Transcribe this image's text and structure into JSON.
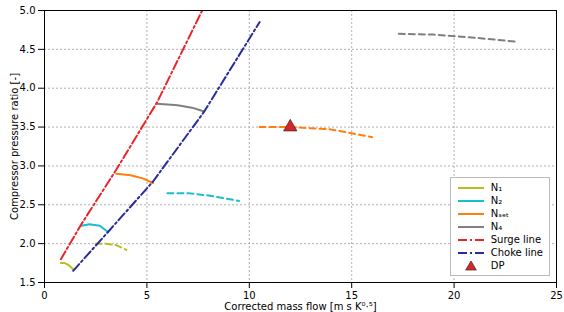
{
  "chart_data": {
    "type": "line",
    "x_label": "Corrected mass flow [m s K⁰·⁵]",
    "y_label": "Compressor pressure ratio [-]",
    "xlim": [
      0,
      25
    ],
    "xticks": [
      0,
      5,
      10,
      15,
      20,
      25
    ],
    "ylim": [
      1.5,
      5.0
    ],
    "yticks": [
      1.5,
      {
        "value": 2,
        "label": "2.0"
      },
      2.5,
      {
        "value": 3,
        "label": "3.0"
      },
      3.5,
      {
        "value": 4,
        "label": "4.0"
      },
      4.5,
      {
        "value": 5,
        "label": "5.0"
      }
    ],
    "grid": true,
    "legend": "lower right",
    "series": [
      {
        "name": "N₁",
        "type": "line",
        "color": "#bcbd22",
        "segments": [
          {
            "line_style": "solid",
            "x": [
              0.8,
              1.0,
              1.2,
              1.4
            ],
            "values": [
              1.75,
              1.75,
              1.72,
              1.67
            ]
          },
          {
            "line_style": "dashed",
            "x": [
              2.5,
              3.0,
              3.5,
              4.0
            ],
            "values": [
              2.0,
              2.0,
              1.98,
              1.92
            ]
          }
        ]
      },
      {
        "name": "N₂",
        "type": "line",
        "color": "#17becf",
        "segments": [
          {
            "line_style": "solid",
            "x": [
              1.8,
              2.2,
              2.7,
              3.1
            ],
            "values": [
              2.23,
              2.25,
              2.23,
              2.15
            ]
          },
          {
            "line_style": "dashed",
            "x": [
              6.0,
              7.0,
              8.0,
              9.5
            ],
            "values": [
              2.65,
              2.65,
              2.62,
              2.55
            ]
          }
        ]
      },
      {
        "name": "Nₛₑₜ",
        "type": "line",
        "color": "#ff7f0e",
        "segments": [
          {
            "line_style": "solid",
            "x": [
              3.5,
              4.2,
              4.8,
              5.3
            ],
            "values": [
              2.9,
              2.88,
              2.84,
              2.78
            ]
          },
          {
            "line_style": "dashed",
            "x": [
              10.5,
              12.0,
              14.0,
              16.0
            ],
            "values": [
              3.5,
              3.5,
              3.47,
              3.37
            ]
          }
        ]
      },
      {
        "name": "N₄",
        "type": "line",
        "color": "#7f7f7f",
        "segments": [
          {
            "line_style": "solid",
            "x": [
              5.5,
              6.5,
              7.2,
              7.8
            ],
            "values": [
              3.8,
              3.78,
              3.75,
              3.7
            ]
          },
          {
            "line_style": "dashed",
            "x": [
              17.3,
              19.0,
              21.0,
              23.0
            ],
            "values": [
              4.7,
              4.69,
              4.65,
              4.6
            ]
          }
        ]
      },
      {
        "name": "Surge line",
        "type": "line",
        "color": "#e8262a",
        "line_style": "dashdot",
        "x": [
          0.8,
          1.8,
          3.5,
          5.5,
          7.7
        ],
        "values": [
          1.8,
          2.25,
          2.95,
          3.82,
          5.0
        ]
      },
      {
        "name": "Choke line",
        "type": "line",
        "color": "#2b2b9a",
        "line_style": "dashdot",
        "x": [
          1.4,
          3.1,
          5.3,
          7.8,
          10.5
        ],
        "values": [
          1.65,
          2.15,
          2.8,
          3.7,
          4.85
        ]
      },
      {
        "name": "DP",
        "type": "scatter",
        "color": "#d62728",
        "marker": "triangle",
        "x": [
          12.0
        ],
        "values": [
          3.5
        ]
      }
    ]
  }
}
